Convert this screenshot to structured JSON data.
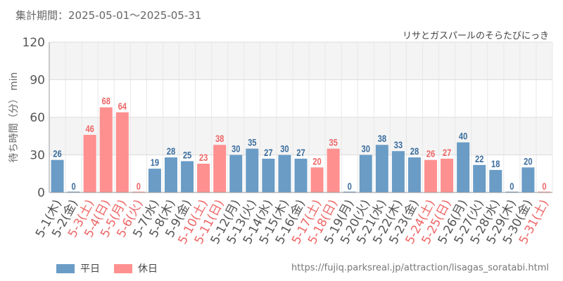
{
  "header": {
    "period": "集計期間：2025-05-01～2025-05-31",
    "attraction": "リサとガスパールのそらたびにっき"
  },
  "colors": {
    "weekday": "#6a9cc6",
    "holiday": "#ff9090",
    "weekday_text": "#3a6d9e",
    "holiday_text": "#ee6666",
    "axis_text": "#555555"
  },
  "legend": {
    "weekday": "平日",
    "holiday": "休日"
  },
  "footer": {
    "url": "https://fujiq.parksreal.jp/attraction/lisagas_soratabi.html"
  },
  "chart_data": {
    "type": "bar",
    "ylabel": "待ち時間（分） min",
    "ylim": [
      0,
      120
    ],
    "yticks": [
      0,
      30,
      60,
      90,
      120
    ],
    "categories": [
      "5-1(木)",
      "5-2(金)",
      "5-3(土)",
      "5-4(日)",
      "5-5(月)",
      "5-6(火)",
      "5-7(水)",
      "5-8(木)",
      "5-9(金)",
      "5-10(土)",
      "5-11(日)",
      "5-12(月)",
      "5-13(火)",
      "5-14(水)",
      "5-15(木)",
      "5-16(金)",
      "5-17(土)",
      "5-18(日)",
      "5-19(月)",
      "5-20(火)",
      "5-21(水)",
      "5-22(木)",
      "5-23(金)",
      "5-24(土)",
      "5-25(日)",
      "5-26(月)",
      "5-27(火)",
      "5-28(水)",
      "5-29(木)",
      "5-30(金)",
      "5-31(土)"
    ],
    "values": [
      26,
      0,
      46,
      68,
      64,
      0,
      19,
      28,
      25,
      23,
      38,
      30,
      35,
      27,
      30,
      27,
      20,
      35,
      0,
      30,
      38,
      33,
      28,
      26,
      27,
      40,
      22,
      18,
      0,
      20,
      0
    ],
    "holiday": [
      false,
      false,
      true,
      true,
      true,
      true,
      false,
      false,
      false,
      true,
      true,
      false,
      false,
      false,
      false,
      false,
      true,
      true,
      false,
      false,
      false,
      false,
      false,
      true,
      true,
      false,
      false,
      false,
      false,
      false,
      true
    ],
    "series": [
      {
        "name": "平日",
        "color": "#6a9cc6"
      },
      {
        "name": "休日",
        "color": "#ff9090"
      }
    ],
    "grid": true,
    "legend_position": "bottom-left"
  }
}
